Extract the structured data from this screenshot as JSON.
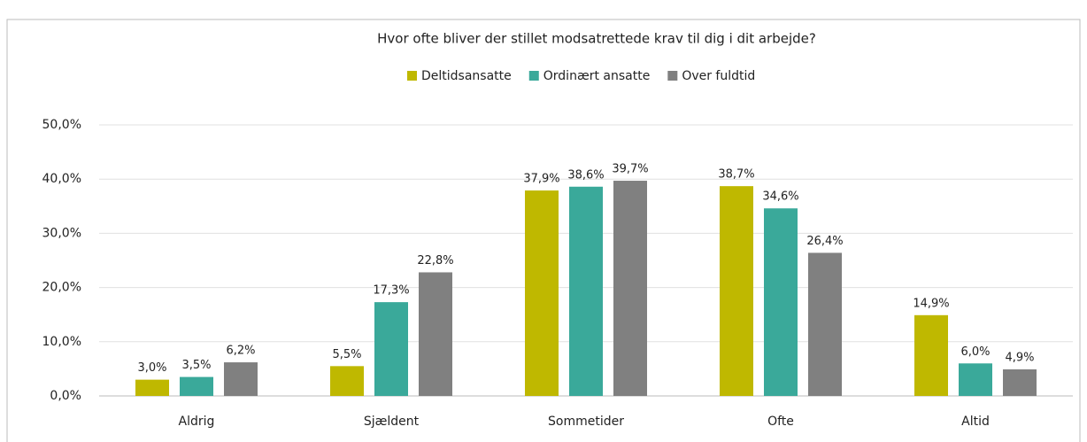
{
  "chart_data": {
    "type": "bar",
    "title": "Hvor ofte bliver der stillet modsatrettede krav til dig i dit arbejde?",
    "categories": [
      "Aldrig",
      "Sjældent",
      "Sommetider",
      "Ofte",
      "Altid"
    ],
    "series": [
      {
        "name": "Deltidsansatte",
        "color": "#bfb800",
        "values": [
          3.0,
          5.5,
          37.9,
          38.7,
          14.9
        ],
        "value_labels": [
          "3,0%",
          "5,5%",
          "37,9%",
          "38,7%",
          "14,9%"
        ]
      },
      {
        "name": "Ordinært ansatte",
        "color": "#3aa99a",
        "values": [
          3.5,
          17.3,
          38.6,
          34.6,
          6.0
        ],
        "value_labels": [
          "3,5%",
          "17,3%",
          "38,6%",
          "34,6%",
          "6,0%"
        ]
      },
      {
        "name": "Over fuldtid",
        "color": "#808080",
        "values": [
          6.2,
          22.8,
          39.7,
          26.4,
          4.9
        ],
        "value_labels": [
          "6,2%",
          "22,8%",
          "39,7%",
          "26,4%",
          "4,9%"
        ]
      }
    ],
    "ylim": [
      0,
      50
    ],
    "yticks": [
      {
        "value": 0,
        "label": "0,0%"
      },
      {
        "value": 10,
        "label": "10,0%"
      },
      {
        "value": 20,
        "label": "20,0%"
      },
      {
        "value": 30,
        "label": "30,0%"
      },
      {
        "value": 40,
        "label": "40,0%"
      },
      {
        "value": 50,
        "label": "50,0%"
      }
    ],
    "grid": true,
    "legend": "top"
  }
}
